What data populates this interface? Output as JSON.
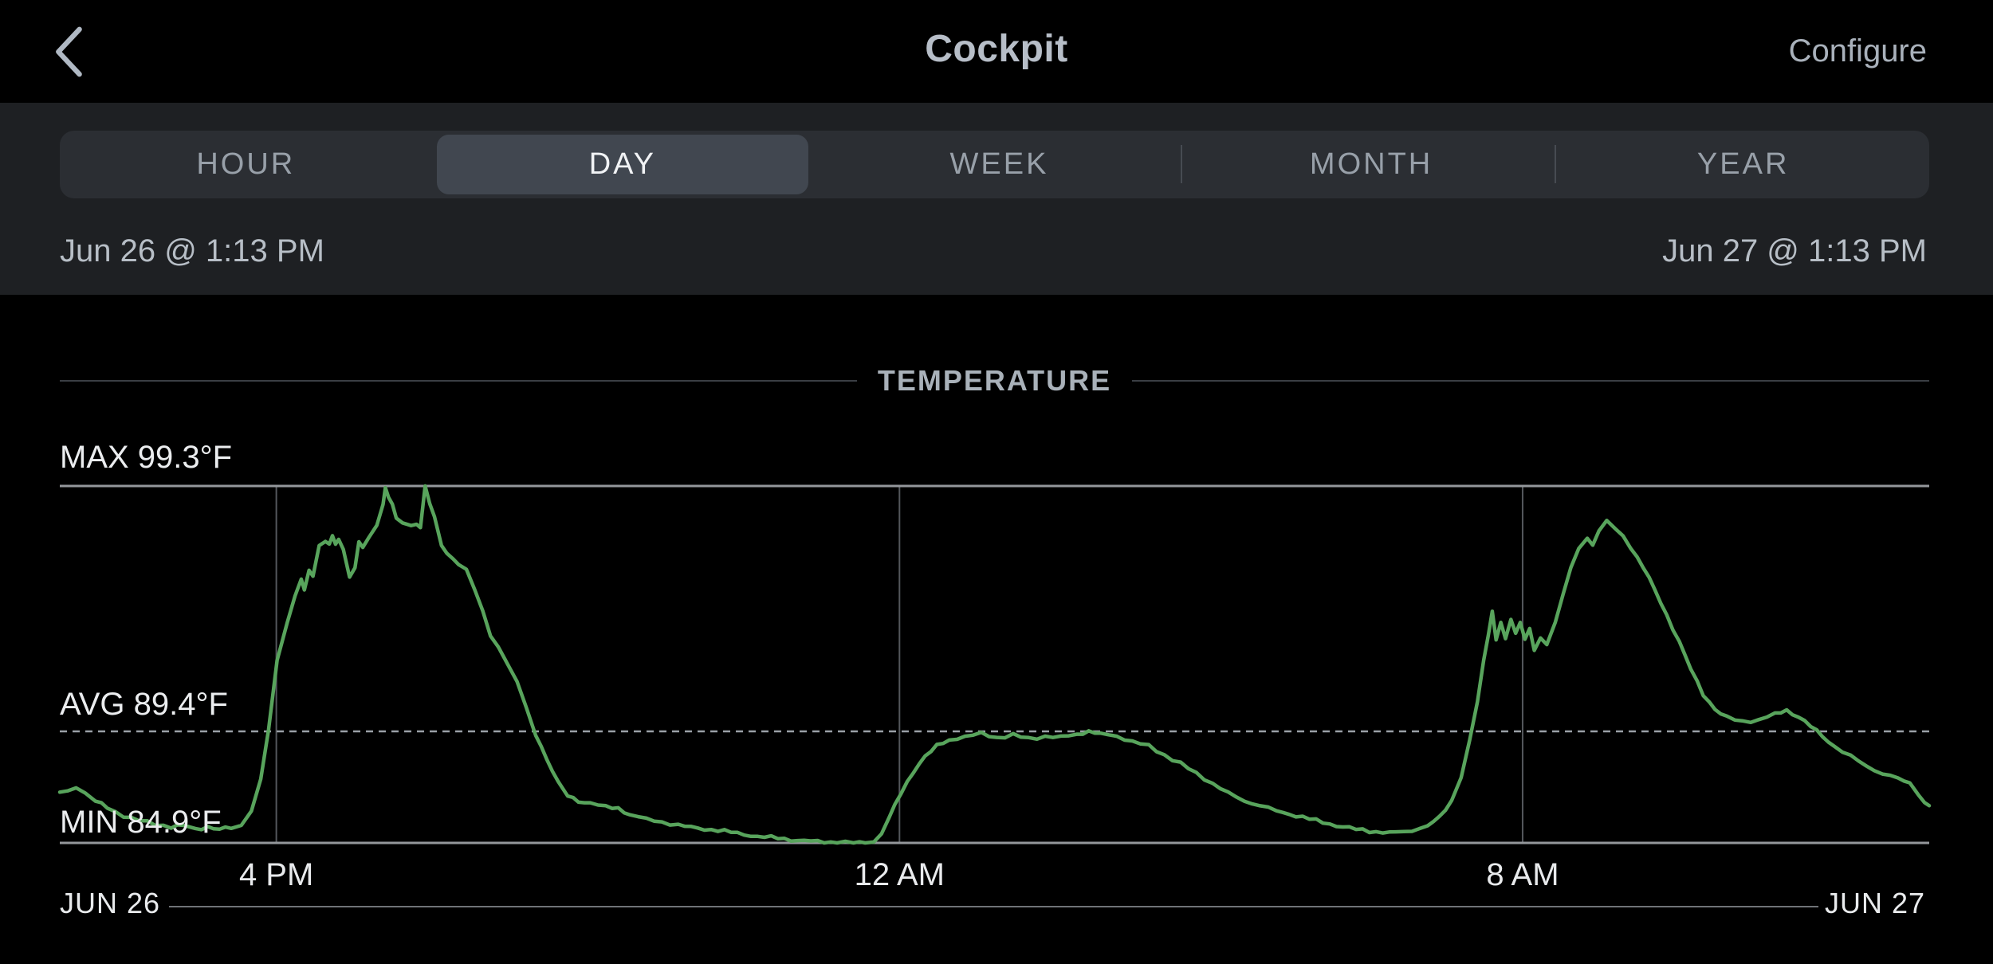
{
  "header": {
    "title": "Cockpit",
    "configure_label": "Configure",
    "back_icon": "chevron-left"
  },
  "time_range_tabs": {
    "selected": "DAY",
    "items": [
      {
        "label": "HOUR"
      },
      {
        "label": "DAY"
      },
      {
        "label": "WEEK"
      },
      {
        "label": "MONTH"
      },
      {
        "label": "YEAR"
      }
    ]
  },
  "date_range": {
    "start": "Jun 26 @ 1:13 PM",
    "end": "Jun 27 @ 1:13 PM"
  },
  "chart_data": {
    "type": "line",
    "title": "TEMPERATURE",
    "legend": "none",
    "grid": true,
    "stats": {
      "max": 99.3,
      "avg": 89.4,
      "min": 84.9,
      "unit": "°F",
      "max_label": "MAX 99.3°F",
      "avg_label": "AVG 89.4°F",
      "min_label": "MIN 84.9°F"
    },
    "x_axis": {
      "span_hours": 24,
      "start_label": "JUN 26",
      "end_label": "JUN 27",
      "ticks": [
        {
          "label": "4 PM",
          "hours": 2.78
        },
        {
          "label": "12 AM",
          "hours": 10.78
        },
        {
          "label": "8 AM",
          "hours": 18.78
        }
      ]
    },
    "y_axis": {
      "top_value": 99.3,
      "bottom_value": 84.9,
      "avg_line": 89.4
    },
    "series": [
      {
        "name": "temperature",
        "unit": "°F",
        "color": "#58a45c",
        "points": [
          [
            0.0,
            86.9
          ],
          [
            0.1,
            87.0
          ],
          [
            0.21,
            87.15
          ],
          [
            0.33,
            86.9
          ],
          [
            0.46,
            86.6
          ],
          [
            0.61,
            86.3
          ],
          [
            0.82,
            86.0
          ],
          [
            1.02,
            85.8
          ],
          [
            1.23,
            85.65
          ],
          [
            1.43,
            85.55
          ],
          [
            1.59,
            85.6
          ],
          [
            1.74,
            85.45
          ],
          [
            1.9,
            85.55
          ],
          [
            2.05,
            85.45
          ],
          [
            2.2,
            85.5
          ],
          [
            2.33,
            85.6
          ],
          [
            2.46,
            86.2
          ],
          [
            2.58,
            87.5
          ],
          [
            2.68,
            89.4
          ],
          [
            2.79,
            92.3
          ],
          [
            2.92,
            93.8
          ],
          [
            3.02,
            94.9
          ],
          [
            3.1,
            95.5
          ],
          [
            3.14,
            95.1
          ],
          [
            3.2,
            95.9
          ],
          [
            3.25,
            95.6
          ],
          [
            3.33,
            96.9
          ],
          [
            3.41,
            97.1
          ],
          [
            3.46,
            96.95
          ],
          [
            3.5,
            97.3
          ],
          [
            3.54,
            97.0
          ],
          [
            3.58,
            97.2
          ],
          [
            3.64,
            96.7
          ],
          [
            3.72,
            95.6
          ],
          [
            3.79,
            96.0
          ],
          [
            3.84,
            97.0
          ],
          [
            3.89,
            96.8
          ],
          [
            3.97,
            97.3
          ],
          [
            4.07,
            97.7
          ],
          [
            4.15,
            98.6
          ],
          [
            4.18,
            99.25
          ],
          [
            4.22,
            98.8
          ],
          [
            4.27,
            98.5
          ],
          [
            4.32,
            98.0
          ],
          [
            4.4,
            97.8
          ],
          [
            4.51,
            97.75
          ],
          [
            4.58,
            97.8
          ],
          [
            4.63,
            97.6
          ],
          [
            4.69,
            99.3
          ],
          [
            4.75,
            98.6
          ],
          [
            4.81,
            98.0
          ],
          [
            4.9,
            96.9
          ],
          [
            4.97,
            96.6
          ],
          [
            5.05,
            96.35
          ],
          [
            5.12,
            96.2
          ],
          [
            5.22,
            95.9
          ],
          [
            5.33,
            95.1
          ],
          [
            5.43,
            94.2
          ],
          [
            5.53,
            93.3
          ],
          [
            5.63,
            92.8
          ],
          [
            5.74,
            92.2
          ],
          [
            5.87,
            91.4
          ],
          [
            5.99,
            90.3
          ],
          [
            6.11,
            89.3
          ],
          [
            6.25,
            88.3
          ],
          [
            6.4,
            87.3
          ],
          [
            6.52,
            86.8
          ],
          [
            6.66,
            86.6
          ],
          [
            6.81,
            86.5
          ],
          [
            7.01,
            86.35
          ],
          [
            7.17,
            86.3
          ],
          [
            7.32,
            86.05
          ],
          [
            7.53,
            85.85
          ],
          [
            7.73,
            85.75
          ],
          [
            7.94,
            85.6
          ],
          [
            8.19,
            85.5
          ],
          [
            8.45,
            85.4
          ],
          [
            8.7,
            85.3
          ],
          [
            8.96,
            85.15
          ],
          [
            9.22,
            85.1
          ],
          [
            9.47,
            85.0
          ],
          [
            9.73,
            84.95
          ],
          [
            9.98,
            84.92
          ],
          [
            10.19,
            84.9
          ],
          [
            10.34,
            84.9
          ],
          [
            10.45,
            84.95
          ],
          [
            10.55,
            85.3
          ],
          [
            10.65,
            85.9
          ],
          [
            10.72,
            86.4
          ],
          [
            10.8,
            86.9
          ],
          [
            10.96,
            87.8
          ],
          [
            11.11,
            88.4
          ],
          [
            11.26,
            88.8
          ],
          [
            11.42,
            89.05
          ],
          [
            11.62,
            89.2
          ],
          [
            11.83,
            89.3
          ],
          [
            12.03,
            89.15
          ],
          [
            12.24,
            89.25
          ],
          [
            12.44,
            89.1
          ],
          [
            12.65,
            89.2
          ],
          [
            12.85,
            89.15
          ],
          [
            13.06,
            89.3
          ],
          [
            13.21,
            89.4
          ],
          [
            13.36,
            89.3
          ],
          [
            13.57,
            89.2
          ],
          [
            13.77,
            89.0
          ],
          [
            13.98,
            88.8
          ],
          [
            14.18,
            88.45
          ],
          [
            14.39,
            88.1
          ],
          [
            14.59,
            87.7
          ],
          [
            14.8,
            87.3
          ],
          [
            15.0,
            86.9
          ],
          [
            15.21,
            86.6
          ],
          [
            15.41,
            86.4
          ],
          [
            15.62,
            86.2
          ],
          [
            15.87,
            86.0
          ],
          [
            16.13,
            85.8
          ],
          [
            16.39,
            85.6
          ],
          [
            16.64,
            85.45
          ],
          [
            16.9,
            85.35
          ],
          [
            17.15,
            85.3
          ],
          [
            17.36,
            85.4
          ],
          [
            17.56,
            85.6
          ],
          [
            17.71,
            85.9
          ],
          [
            17.87,
            86.6
          ],
          [
            17.99,
            87.6
          ],
          [
            18.1,
            89.0
          ],
          [
            18.2,
            90.6
          ],
          [
            18.28,
            92.2
          ],
          [
            18.34,
            93.3
          ],
          [
            18.39,
            94.3
          ],
          [
            18.44,
            93.1
          ],
          [
            18.5,
            93.8
          ],
          [
            18.56,
            93.2
          ],
          [
            18.63,
            93.9
          ],
          [
            18.69,
            93.3
          ],
          [
            18.75,
            93.8
          ],
          [
            18.81,
            93.1
          ],
          [
            18.87,
            93.5
          ],
          [
            18.93,
            92.7
          ],
          [
            19.01,
            93.2
          ],
          [
            19.09,
            92.9
          ],
          [
            19.2,
            93.8
          ],
          [
            19.3,
            94.9
          ],
          [
            19.4,
            96.0
          ],
          [
            19.5,
            96.8
          ],
          [
            19.61,
            97.2
          ],
          [
            19.68,
            96.9
          ],
          [
            19.76,
            97.5
          ],
          [
            19.86,
            97.85
          ],
          [
            19.97,
            97.6
          ],
          [
            20.07,
            97.3
          ],
          [
            20.17,
            96.8
          ],
          [
            20.33,
            96.0
          ],
          [
            20.48,
            95.1
          ],
          [
            20.63,
            94.1
          ],
          [
            20.79,
            93.0
          ],
          [
            20.94,
            91.9
          ],
          [
            21.1,
            90.9
          ],
          [
            21.25,
            90.3
          ],
          [
            21.4,
            89.95
          ],
          [
            21.61,
            89.8
          ],
          [
            21.81,
            89.85
          ],
          [
            22.02,
            90.1
          ],
          [
            22.17,
            90.25
          ],
          [
            22.32,
            90.0
          ],
          [
            22.48,
            89.6
          ],
          [
            22.63,
            89.2
          ],
          [
            22.78,
            88.8
          ],
          [
            22.99,
            88.4
          ],
          [
            23.19,
            88.0
          ],
          [
            23.4,
            87.7
          ],
          [
            23.6,
            87.5
          ],
          [
            23.75,
            87.3
          ],
          [
            23.86,
            86.9
          ],
          [
            23.94,
            86.5
          ],
          [
            24.0,
            86.4
          ]
        ]
      }
    ]
  }
}
